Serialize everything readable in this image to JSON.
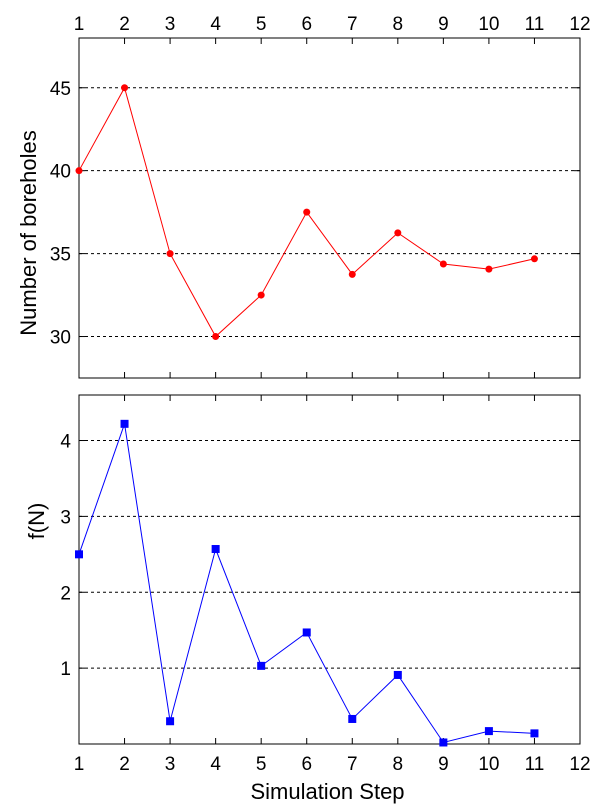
{
  "chart_data": [
    {
      "type": "line",
      "xlabel": "",
      "ylabel": "Number of boreholes",
      "xlim": [
        1,
        12
      ],
      "ylim": [
        27.5,
        48
      ],
      "x_ticks": [
        "1",
        "2",
        "3",
        "4",
        "5",
        "6",
        "7",
        "8",
        "9",
        "10",
        "11",
        "12"
      ],
      "y_ticks": [
        "30",
        "35",
        "40",
        "45"
      ],
      "grid": "horizontal dashed",
      "color": "#ff0000",
      "marker": "circle",
      "series": [
        {
          "x": [
            1,
            2,
            3,
            4,
            5,
            6,
            7,
            8,
            9,
            10,
            11
          ],
          "values": [
            40,
            45,
            35,
            30,
            32.5,
            37.5,
            33.75,
            36.25,
            34.375,
            34.0625,
            34.6875
          ]
        }
      ]
    },
    {
      "type": "line",
      "xlabel": "Simulation Step",
      "ylabel": "f(N)",
      "xlim": [
        1,
        12
      ],
      "ylim": [
        0,
        4.6
      ],
      "x_ticks": [
        "1",
        "2",
        "3",
        "4",
        "5",
        "6",
        "7",
        "8",
        "9",
        "10",
        "11",
        "12"
      ],
      "y_ticks": [
        "1",
        "2",
        "3",
        "4"
      ],
      "grid": "horizontal dashed",
      "color": "#0000ff",
      "marker": "square",
      "series": [
        {
          "x": [
            1,
            2,
            3,
            4,
            5,
            6,
            7,
            8,
            9,
            10,
            11
          ],
          "values": [
            2.5,
            4.22,
            0.3,
            2.57,
            1.03,
            1.47,
            0.33,
            0.91,
            0.02,
            0.17,
            0.14
          ]
        }
      ]
    }
  ]
}
